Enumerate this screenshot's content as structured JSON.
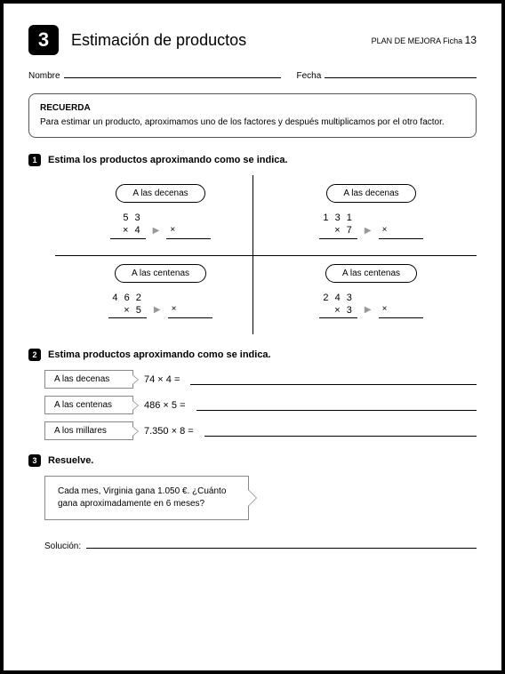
{
  "header": {
    "num": "3",
    "title": "Estimación de productos",
    "plan": "PLAN DE MEJORA  Ficha",
    "ficha": "13"
  },
  "fields": {
    "nombre": "Nombre",
    "fecha": "Fecha"
  },
  "recuerda": {
    "heading": "RECUERDA",
    "body": "Para estimar un producto, aproximamos uno de los factores y después multiplicamos por el otro factor."
  },
  "s1": {
    "num": "1",
    "title": "Estima los productos aproximando como se indica.",
    "cells": [
      {
        "pill": "A las decenas",
        "top": "5 3",
        "bot": "× 4"
      },
      {
        "pill": "A las decenas",
        "top": "1 3 1",
        "bot": "× 7"
      },
      {
        "pill": "A las centenas",
        "top": "4 6 2",
        "bot": "× 5"
      },
      {
        "pill": "A las centenas",
        "top": "2 4 3",
        "bot": "× 3"
      }
    ]
  },
  "s2": {
    "num": "2",
    "title": "Estima productos aproximando como se indica.",
    "rows": [
      {
        "tag": "A las decenas",
        "eq": "74 × 4 ="
      },
      {
        "tag": "A las centenas",
        "eq": "486 × 5 ="
      },
      {
        "tag": "A los millares",
        "eq": "7.350 × 8 ="
      }
    ]
  },
  "s3": {
    "num": "3",
    "title": "Resuelve.",
    "problem": "Cada mes, Virginia gana 1.050 €. ¿Cuánto gana aproximadamente en 6 meses?",
    "sol": "Solución:"
  },
  "sym": {
    "times": "×",
    "arrow": "▶"
  }
}
